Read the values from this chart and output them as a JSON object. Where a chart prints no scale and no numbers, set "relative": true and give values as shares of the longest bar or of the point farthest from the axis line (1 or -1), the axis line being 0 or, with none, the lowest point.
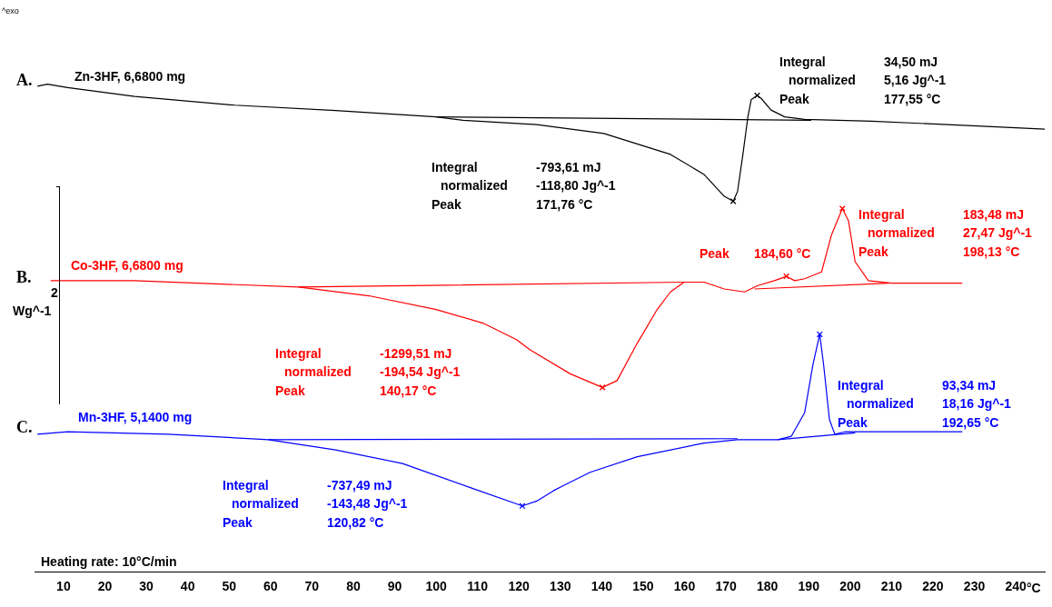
{
  "chart_data": {
    "type": "line",
    "relative": true,
    "legend": false,
    "grid": false,
    "marker": "none",
    "tick_labels": "x",
    "xlabel": "°C",
    "xlim": [
      3,
      247
    ],
    "xticks": [
      10,
      20,
      30,
      40,
      50,
      60,
      70,
      80,
      90,
      100,
      110,
      120,
      130,
      140,
      150,
      160,
      170,
      180,
      190,
      200,
      210,
      220,
      230,
      240
    ],
    "series": [
      {
        "name": "Zn-3HF, 6,6800 mg",
        "color": "#000000",
        "x": [
          3.7,
          6.1,
          11.0,
          27.2,
          51.4,
          75.7,
          100.0,
          106.5,
          124.3,
          140.5,
          156.6,
          164.7,
          169.6,
          171.76,
          172.8,
          174.1,
          175.3,
          176.1,
          177.55,
          178.5,
          180.9,
          184.2,
          189.0,
          205.2,
          229.5,
          247
        ],
        "values": [
          0.996,
          1.0,
          0.993,
          0.975,
          0.957,
          0.946,
          0.933,
          0.926,
          0.917,
          0.899,
          0.856,
          0.815,
          0.77,
          0.76,
          0.78,
          0.856,
          0.933,
          0.968,
          0.977,
          0.971,
          0.947,
          0.933,
          0.928,
          0.924,
          0.915,
          0.908
        ]
      },
      {
        "name": "Co-3HF, 6,6800 mg",
        "color": "#ff0000",
        "x": [
          6.9,
          27.2,
          66.8,
          83.8,
          100.0,
          111.3,
          119.4,
          122.7,
          132.4,
          140.17,
          143.7,
          148.6,
          153.4,
          156.6,
          159.9,
          164.7,
          169.6,
          174.5,
          177.7,
          181.7,
          184.6,
          186.6,
          189.0,
          193.1,
          195.5,
          198.13,
          199.6,
          201.2,
          204.4,
          210.1,
          227.1
        ],
        "values": [
          0.597,
          0.597,
          0.584,
          0.566,
          0.538,
          0.51,
          0.476,
          0.455,
          0.406,
          0.378,
          0.392,
          0.469,
          0.538,
          0.574,
          0.594,
          0.594,
          0.58,
          0.574,
          0.587,
          0.597,
          0.606,
          0.597,
          0.601,
          0.615,
          0.691,
          0.745,
          0.72,
          0.636,
          0.597,
          0.592,
          0.592
        ]
      },
      {
        "name": "Mn-3HF, 5,1400 mg",
        "color": "#0000ff",
        "x": [
          3.7,
          11.0,
          35.3,
          59.5,
          75.7,
          91.9,
          108.1,
          120.82,
          124.3,
          128.3,
          130.8,
          137.2,
          148.6,
          164.7,
          172.8,
          182.5,
          185.8,
          189.0,
          191.0,
          192.65,
          193.6,
          195.0,
          196.3,
          198.7,
          202.0,
          227.1
        ],
        "values": [
          0.282,
          0.287,
          0.282,
          0.271,
          0.25,
          0.222,
          0.173,
          0.135,
          0.145,
          0.166,
          0.177,
          0.204,
          0.236,
          0.264,
          0.271,
          0.271,
          0.278,
          0.326,
          0.424,
          0.487,
          0.424,
          0.312,
          0.282,
          0.287,
          0.287,
          0.287
        ]
      },
      {
        "type": "line",
        "color": "#000000",
        "x": [
          100.0,
          190.6
        ],
        "values": [
          0.933,
          0.926
        ]
      },
      {
        "type": "line",
        "color": "#ff0000",
        "x": [
          66.8,
          159.9,
          null,
          176.9,
          209.3
        ],
        "values": [
          0.584,
          0.594,
          null,
          0.58,
          0.592
        ]
      },
      {
        "type": "line",
        "color": "#0000ff",
        "x": [
          59.5,
          172.8,
          null,
          182.5,
          201.2
        ],
        "values": [
          0.271,
          0.273,
          null,
          0.271,
          0.285
        ]
      },
      {
        "type": "scatter",
        "marker": "cross",
        "color": "#000000",
        "x": [
          171.76,
          177.55
        ],
        "values": [
          0.76,
          0.977
        ]
      },
      {
        "type": "scatter",
        "marker": "cross",
        "color": "#ff0000",
        "x": [
          140.17,
          184.6,
          198.13
        ],
        "values": [
          0.378,
          0.606,
          0.745
        ]
      },
      {
        "type": "scatter",
        "marker": "cross",
        "color": "#0000ff",
        "x": [
          120.82,
          192.65
        ],
        "values": [
          0.135,
          0.487
        ]
      }
    ],
    "annotations": [
      "34,50 mJ\n5,16 Jg^-1\n177,55 °C",
      "-793,61 mJ\n-118,80 Jg^-1\n171,76 °C",
      "183,48 mJ\n27,47 Jg^-1\n198,13 °C",
      "184,60 °C",
      "-1299,51 mJ\n-194,54 Jg^-1\n140,17 °C",
      "93,34 mJ\n18,16 Jg^-1\n192,65 °C",
      "-737,49 mJ\n-143,48 Jg^-1\n120,82 °C",
      "Integral\nnormalized\nPeak",
      "Integral\nnormalized\nPeak",
      "Integral\nnormalized\nPeak",
      "Peak",
      "Integral\nnormalized\nPeak",
      "Integral\nnormalized\nPeak",
      "Integral\nnormalized\nPeak",
      "^exo",
      "A.",
      "B.",
      "C.",
      "2",
      "Wg^-1",
      "Heating rate: 10°C/min"
    ]
  }
}
